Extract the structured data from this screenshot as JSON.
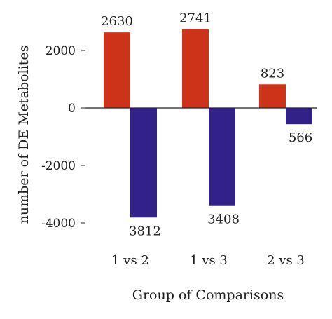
{
  "chart_data": {
    "type": "bar",
    "title": "",
    "xlabel": "Group of Comparisons",
    "ylabel": "number of DE Metabolites",
    "categories": [
      "1 vs 2",
      "1 vs 3",
      "2 vs 3"
    ],
    "series": [
      {
        "values": [
          2630,
          2741,
          823
        ],
        "labels": [
          "2630",
          "2741",
          "823"
        ],
        "color": "#cc3318"
      },
      {
        "values": [
          -3812,
          -3408,
          -566
        ],
        "labels": [
          "3812",
          "3408",
          "566"
        ],
        "color": "#33218a"
      }
    ],
    "y_ticks": [
      2000,
      0,
      -2000,
      -4000
    ],
    "y_tick_labels": [
      "2000",
      "0",
      "-2000",
      "-4000"
    ],
    "ylim": [
      -4000,
      2900
    ],
    "grid": false,
    "legend": "none"
  }
}
